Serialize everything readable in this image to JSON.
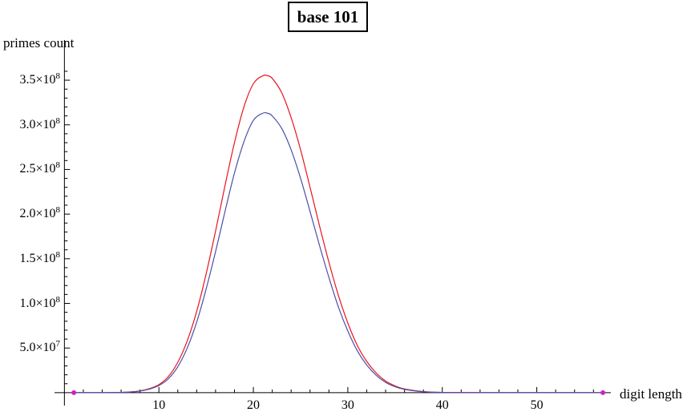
{
  "chart_data": {
    "type": "line",
    "title": "base 101",
    "xlabel": "digit length",
    "ylabel": "primes count",
    "xlim": [
      -0.2,
      57.5
    ],
    "ylim": [
      -1000000,
      368000000
    ],
    "x_ticks": [
      10,
      20,
      30,
      40,
      50
    ],
    "y_ticks": [
      {
        "value": 50000000,
        "mantissa": "5.0",
        "exponent": "7"
      },
      {
        "value": 100000000,
        "mantissa": "1.0",
        "exponent": "8"
      },
      {
        "value": 150000000,
        "mantissa": "1.5",
        "exponent": "8"
      },
      {
        "value": 200000000,
        "mantissa": "2.0",
        "exponent": "8"
      },
      {
        "value": 250000000,
        "mantissa": "2.5",
        "exponent": "8"
      },
      {
        "value": 300000000,
        "mantissa": "3.0",
        "exponent": "8"
      },
      {
        "value": 350000000,
        "mantissa": "3.5",
        "exponent": "8"
      }
    ],
    "series": [
      {
        "color": "#e8141e",
        "x": [
          1,
          3,
          5,
          7,
          8,
          9,
          10,
          11,
          12,
          13,
          14,
          15,
          16,
          17,
          18,
          19,
          20,
          21,
          21.5,
          22,
          23,
          24,
          25,
          26,
          27,
          28,
          29,
          30,
          31,
          32,
          33,
          34,
          35,
          36,
          38,
          40,
          42,
          45,
          50,
          57
        ],
        "values": [
          0,
          0,
          100000,
          800000,
          2000000,
          4500000,
          9000000,
          18000000,
          34000000,
          58000000,
          91000000,
          133000000,
          181000000,
          232000000,
          280000000,
          320000000,
          346000000,
          355000000,
          355000000,
          352000000,
          336000000,
          308000000,
          272000000,
          230000000,
          187000000,
          146000000,
          109000000,
          78000000,
          53000000,
          35000000,
          22000000,
          13000000,
          7600000,
          4200000,
          1200000,
          300000,
          100000,
          0,
          0,
          0
        ]
      },
      {
        "color": "#4b4fa8",
        "x": [
          1,
          3,
          5,
          7,
          8,
          9,
          10,
          11,
          12,
          13,
          14,
          15,
          16,
          17,
          18,
          19,
          20,
          21,
          21.5,
          22,
          23,
          24,
          25,
          26,
          27,
          28,
          29,
          30,
          31,
          32,
          33,
          34,
          35,
          36,
          38,
          40,
          42,
          45,
          50,
          57
        ],
        "values": [
          0,
          0,
          100000,
          700000,
          1800000,
          4000000,
          8000000,
          15500000,
          29000000,
          50000000,
          79000000,
          116000000,
          158000000,
          203000000,
          246000000,
          281000000,
          305000000,
          313000000,
          313000000,
          310000000,
          296000000,
          272000000,
          240000000,
          203000000,
          165000000,
          129000000,
          96000000,
          69000000,
          47000000,
          31000000,
          19500000,
          11500000,
          6700000,
          3700000,
          1000000,
          250000,
          80000,
          0,
          0,
          0
        ]
      }
    ],
    "markers": {
      "color": "#cc22cc",
      "points": [
        {
          "x": 1,
          "y": 0
        },
        {
          "x": 57,
          "y": 0
        }
      ]
    }
  }
}
